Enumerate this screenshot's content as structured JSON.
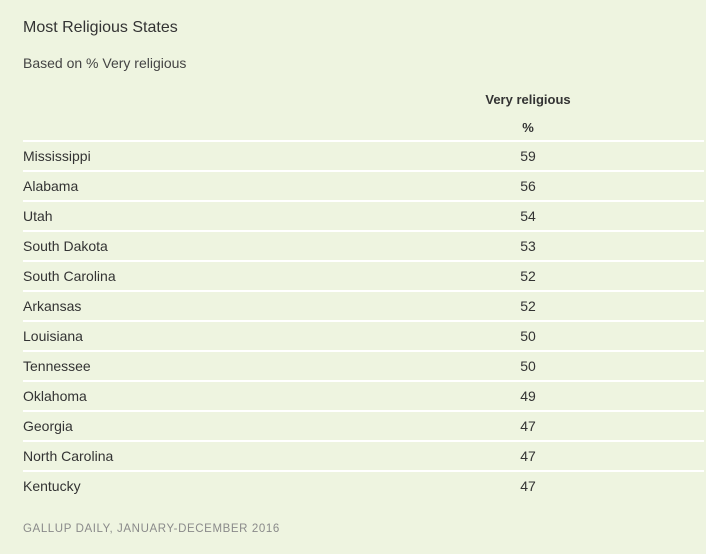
{
  "title": "Most Religious States",
  "subtitle": "Based on % Very religious",
  "source": "GALLUP DAILY, JANUARY-DECEMBER 2016",
  "colors": {
    "background": "#eef4e0",
    "divider": "#ffffff",
    "text": "#333333",
    "source_text": "#8a8a8a"
  },
  "chart_data": {
    "type": "table",
    "columns": [
      {
        "header": "",
        "unit": ""
      },
      {
        "header": "Very religious",
        "unit": "%"
      }
    ],
    "rows": [
      {
        "state": "Mississippi",
        "value": "59"
      },
      {
        "state": "Alabama",
        "value": "56"
      },
      {
        "state": "Utah",
        "value": "54"
      },
      {
        "state": "South Dakota",
        "value": "53"
      },
      {
        "state": "South Carolina",
        "value": "52"
      },
      {
        "state": "Arkansas",
        "value": "52"
      },
      {
        "state": "Louisiana",
        "value": "50"
      },
      {
        "state": "Tennessee",
        "value": "50"
      },
      {
        "state": "Oklahoma",
        "value": "49"
      },
      {
        "state": "Georgia",
        "value": "47"
      },
      {
        "state": "North Carolina",
        "value": "47"
      },
      {
        "state": "Kentucky",
        "value": "47"
      }
    ]
  }
}
